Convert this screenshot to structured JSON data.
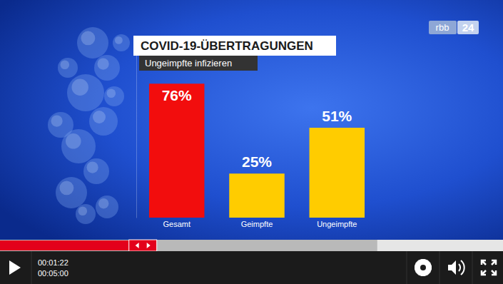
{
  "chart_data": {
    "type": "bar",
    "title": "COVID-19-ÜBERTRAGUNGEN",
    "subtitle": "Ungeimpfte infizieren",
    "categories": [
      "Gesamt",
      "Geimpfte",
      "Ungeimpfte"
    ],
    "values": [
      76,
      25,
      51
    ],
    "value_labels": [
      "76%",
      "25%",
      "51%"
    ],
    "colors": [
      "#f20d0d",
      "#ffcc00",
      "#ffcc00"
    ],
    "ylim": [
      0,
      100
    ],
    "data_labels": true,
    "tick_labels": "x"
  },
  "logo": {
    "name": "rbb",
    "channel": "24"
  },
  "player": {
    "current_time": "00:01:22",
    "duration": "00:05:00"
  }
}
